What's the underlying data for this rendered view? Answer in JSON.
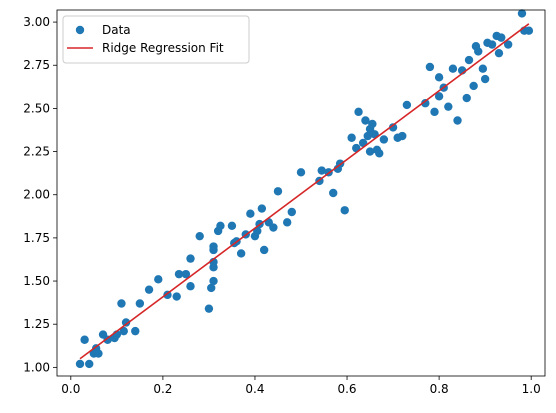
{
  "chart_data": {
    "type": "scatter",
    "title": "",
    "xlabel": "",
    "ylabel": "",
    "xlim": [
      -0.03,
      1.03
    ],
    "ylim": [
      0.95,
      3.07
    ],
    "xticks": [
      0.0,
      0.2,
      0.4,
      0.6,
      0.8,
      1.0
    ],
    "yticks": [
      1.0,
      1.25,
      1.5,
      1.75,
      2.0,
      2.25,
      2.5,
      2.75,
      3.0
    ],
    "xtick_labels": [
      "0.0",
      "0.2",
      "0.4",
      "0.6",
      "0.8",
      "1.0"
    ],
    "ytick_labels": [
      "1.00",
      "1.25",
      "1.50",
      "1.75",
      "2.00",
      "2.25",
      "2.50",
      "2.75",
      "3.00"
    ],
    "grid": false,
    "legend_position": "top-left",
    "series": [
      {
        "name": "Data",
        "kind": "scatter",
        "color": "#1f77b4",
        "points": [
          [
            0.02,
            1.02
          ],
          [
            0.03,
            1.16
          ],
          [
            0.04,
            1.02
          ],
          [
            0.05,
            1.08
          ],
          [
            0.055,
            1.11
          ],
          [
            0.06,
            1.08
          ],
          [
            0.07,
            1.19
          ],
          [
            0.08,
            1.16
          ],
          [
            0.095,
            1.17
          ],
          [
            0.1,
            1.19
          ],
          [
            0.11,
            1.37
          ],
          [
            0.115,
            1.21
          ],
          [
            0.12,
            1.26
          ],
          [
            0.14,
            1.21
          ],
          [
            0.15,
            1.37
          ],
          [
            0.17,
            1.45
          ],
          [
            0.19,
            1.51
          ],
          [
            0.21,
            1.42
          ],
          [
            0.23,
            1.41
          ],
          [
            0.235,
            1.54
          ],
          [
            0.25,
            1.54
          ],
          [
            0.26,
            1.47
          ],
          [
            0.26,
            1.63
          ],
          [
            0.28,
            1.76
          ],
          [
            0.3,
            1.34
          ],
          [
            0.305,
            1.46
          ],
          [
            0.31,
            1.5
          ],
          [
            0.31,
            1.58
          ],
          [
            0.31,
            1.61
          ],
          [
            0.31,
            1.68
          ],
          [
            0.31,
            1.7
          ],
          [
            0.32,
            1.79
          ],
          [
            0.325,
            1.82
          ],
          [
            0.35,
            1.82
          ],
          [
            0.355,
            1.72
          ],
          [
            0.36,
            1.73
          ],
          [
            0.37,
            1.66
          ],
          [
            0.38,
            1.77
          ],
          [
            0.39,
            1.89
          ],
          [
            0.4,
            1.76
          ],
          [
            0.405,
            1.79
          ],
          [
            0.41,
            1.83
          ],
          [
            0.415,
            1.92
          ],
          [
            0.42,
            1.68
          ],
          [
            0.43,
            1.84
          ],
          [
            0.44,
            1.81
          ],
          [
            0.45,
            2.02
          ],
          [
            0.47,
            1.84
          ],
          [
            0.48,
            1.9
          ],
          [
            0.5,
            2.13
          ],
          [
            0.54,
            2.08
          ],
          [
            0.545,
            2.14
          ],
          [
            0.56,
            2.13
          ],
          [
            0.57,
            2.01
          ],
          [
            0.58,
            2.15
          ],
          [
            0.585,
            2.18
          ],
          [
            0.595,
            1.91
          ],
          [
            0.61,
            2.33
          ],
          [
            0.62,
            2.27
          ],
          [
            0.625,
            2.48
          ],
          [
            0.635,
            2.3
          ],
          [
            0.64,
            2.43
          ],
          [
            0.645,
            2.34
          ],
          [
            0.65,
            2.25
          ],
          [
            0.65,
            2.38
          ],
          [
            0.655,
            2.41
          ],
          [
            0.66,
            2.35
          ],
          [
            0.665,
            2.26
          ],
          [
            0.67,
            2.24
          ],
          [
            0.68,
            2.32
          ],
          [
            0.7,
            2.39
          ],
          [
            0.71,
            2.33
          ],
          [
            0.72,
            2.34
          ],
          [
            0.73,
            2.52
          ],
          [
            0.77,
            2.53
          ],
          [
            0.78,
            2.74
          ],
          [
            0.79,
            2.48
          ],
          [
            0.8,
            2.57
          ],
          [
            0.8,
            2.68
          ],
          [
            0.81,
            2.62
          ],
          [
            0.82,
            2.51
          ],
          [
            0.83,
            2.73
          ],
          [
            0.84,
            2.43
          ],
          [
            0.85,
            2.72
          ],
          [
            0.86,
            2.56
          ],
          [
            0.865,
            2.78
          ],
          [
            0.875,
            2.63
          ],
          [
            0.88,
            2.86
          ],
          [
            0.885,
            2.83
          ],
          [
            0.895,
            2.73
          ],
          [
            0.9,
            2.67
          ],
          [
            0.905,
            2.88
          ],
          [
            0.915,
            2.87
          ],
          [
            0.925,
            2.92
          ],
          [
            0.93,
            2.82
          ],
          [
            0.935,
            2.91
          ],
          [
            0.95,
            2.87
          ],
          [
            0.98,
            3.05
          ],
          [
            0.985,
            2.95
          ],
          [
            0.995,
            2.95
          ]
        ]
      },
      {
        "name": "Ridge Regression Fit",
        "kind": "line",
        "color": "#d62728",
        "points": [
          [
            0.02,
            1.05
          ],
          [
            0.995,
            2.99
          ]
        ]
      }
    ]
  }
}
